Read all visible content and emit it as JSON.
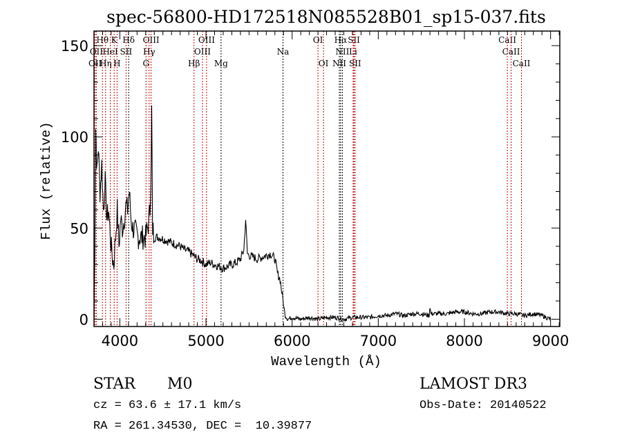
{
  "chart_data": {
    "type": "line",
    "title": "spec-56800-HD172518N085528B01_sp15-037.fits",
    "xlabel": "Wavelength (Å)",
    "ylabel": "Flux (relative)",
    "xlim": [
      3700,
      9107
    ],
    "ylim": [
      -4,
      158
    ],
    "xticks": [
      4000,
      5000,
      6000,
      7000,
      8000,
      9000
    ],
    "xtick_labels": [
      "4000",
      "5000",
      "6000",
      "7000",
      "8000",
      "9000"
    ],
    "yticks": [
      0,
      50,
      100,
      150
    ],
    "ytick_labels": [
      "0",
      "50",
      "100",
      "150"
    ],
    "grid": false,
    "series": [
      {
        "name": "spectrum",
        "x": [
          3700,
          3710,
          3720,
          3735,
          3750,
          3770,
          3790,
          3810,
          3830,
          3850,
          3870,
          3890,
          3910,
          3930,
          3950,
          3970,
          3990,
          4010,
          4030,
          4050,
          4070,
          4090,
          4110,
          4130,
          4150,
          4180,
          4210,
          4250,
          4300,
          4330,
          4350,
          4365,
          4370,
          4380,
          4400,
          4450,
          4500,
          4550,
          4600,
          4650,
          4700,
          4750,
          4800,
          4850,
          4900,
          4950,
          5000,
          5050,
          5100,
          5150,
          5200,
          5250,
          5300,
          5350,
          5400,
          5440,
          5460,
          5480,
          5500,
          5550,
          5600,
          5650,
          5700,
          5750,
          5800,
          5830,
          5860,
          5880,
          5900,
          5920,
          5950,
          6000,
          6100,
          6200,
          6300,
          6400,
          6500,
          6600,
          6700,
          6800,
          6900,
          7000,
          7100,
          7200,
          7300,
          7400,
          7500,
          7590,
          7600,
          7610,
          7700,
          7800,
          7900,
          8000,
          8100,
          8200,
          8300,
          8400,
          8500,
          8600,
          8700,
          8800,
          8900,
          8950,
          9000
        ],
        "y": [
          2,
          40,
          105,
          80,
          95,
          70,
          85,
          60,
          75,
          55,
          60,
          45,
          35,
          30,
          45,
          60,
          40,
          55,
          50,
          55,
          62,
          60,
          70,
          55,
          50,
          48,
          45,
          45,
          45,
          52,
          60,
          90,
          115,
          50,
          45,
          45,
          44,
          43,
          42,
          41,
          40,
          38,
          37,
          35,
          33,
          32,
          30,
          31,
          30,
          29,
          28,
          29,
          30,
          31,
          33,
          38,
          55,
          36,
          35,
          34,
          33,
          34,
          35,
          36,
          33,
          25,
          22,
          15,
          8,
          2,
          0,
          1,
          0,
          1,
          0,
          1,
          1,
          0,
          1,
          1,
          1,
          2,
          2,
          3,
          2,
          3,
          3,
          2,
          7,
          3,
          3,
          3,
          4,
          4,
          3,
          3,
          4,
          4,
          3,
          3,
          2,
          3,
          2,
          1,
          0
        ]
      }
    ],
    "line_markers": [
      {
        "label": "Hθ",
        "wavelength": 3798,
        "color": "#c00000",
        "row": 0
      },
      {
        "label": "K",
        "wavelength": 3934,
        "color": "#c00000",
        "row": 0
      },
      {
        "label": "Hδ",
        "wavelength": 4102,
        "color": "#000000",
        "row": 0
      },
      {
        "label": "OIII",
        "wavelength": 4363,
        "color": "#c00000",
        "row": 0
      },
      {
        "label": "OIII",
        "wavelength": 5007,
        "color": "#c00000",
        "row": 0
      },
      {
        "label": "OI",
        "wavelength": 6300,
        "color": "#c00000",
        "row": 0
      },
      {
        "label": "Hα",
        "wavelength": 6563,
        "color": "#000000",
        "row": 0
      },
      {
        "label": "SII",
        "wavelength": 6717,
        "color": "#c00000",
        "row": 0
      },
      {
        "label": "CaII",
        "wavelength": 8498,
        "color": "#c00000",
        "row": 0
      },
      {
        "label": "OII",
        "wavelength": 3727,
        "color": "#c00000",
        "row": 1
      },
      {
        "label": "HeI",
        "wavelength": 3889,
        "color": "#c00000",
        "row": 1
      },
      {
        "label": "SII",
        "wavelength": 4072,
        "color": "#c00000",
        "row": 1
      },
      {
        "label": "Hγ",
        "wavelength": 4340,
        "color": "#c00000",
        "row": 1
      },
      {
        "label": "OIII",
        "wavelength": 4959,
        "color": "#c00000",
        "row": 1
      },
      {
        "label": "Na",
        "wavelength": 5894,
        "color": "#000000",
        "row": 1
      },
      {
        "label": "NII",
        "wavelength": 6583,
        "color": "#000000",
        "row": 1
      },
      {
        "label": "Li",
        "wavelength": 6708,
        "color": "#c00000",
        "row": 1
      },
      {
        "label": "CaII",
        "wavelength": 8542,
        "color": "#c00000",
        "row": 1
      },
      {
        "label": "OII",
        "wavelength": 3713,
        "color": "#c00000",
        "row": 2
      },
      {
        "label": "Hη",
        "wavelength": 3835,
        "color": "#c00000",
        "row": 2
      },
      {
        "label": "H",
        "wavelength": 3968,
        "color": "#c00000",
        "row": 2
      },
      {
        "label": "G",
        "wavelength": 4304,
        "color": "#c00000",
        "row": 2
      },
      {
        "label": "Hβ",
        "wavelength": 4861,
        "color": "#c00000",
        "row": 2
      },
      {
        "label": "Mg",
        "wavelength": 5175,
        "color": "#000000",
        "row": 2
      },
      {
        "label": "OI",
        "wavelength": 6364,
        "color": "#c00000",
        "row": 2
      },
      {
        "label": "NII",
        "wavelength": 6548,
        "color": "#000000",
        "row": 2
      },
      {
        "label": "SII",
        "wavelength": 6731,
        "color": "#c00000",
        "row": 2
      },
      {
        "label": "CaII",
        "wavelength": 8662,
        "color": "#c00000",
        "row": 2
      }
    ]
  },
  "info": {
    "class": "STAR",
    "subclass": "M0",
    "survey": "LAMOST DR3",
    "cz": "cz = 63.6 ± 17.1 km/s",
    "obs_date": "Obs-Date: 20140522",
    "coords": "RA = 261.34530, DEC =  10.39877"
  }
}
